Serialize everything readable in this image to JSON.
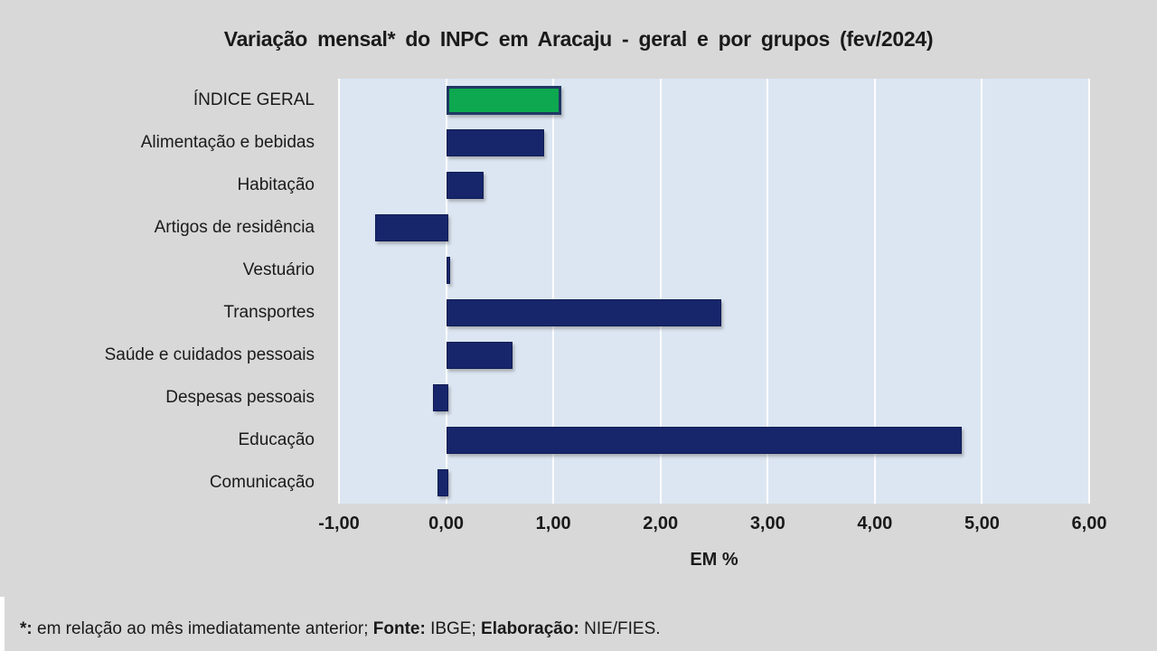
{
  "chart_data": {
    "type": "bar",
    "orientation": "horizontal",
    "title": "Variação mensal* do INPC em Aracaju - geral e por grupos (fev/2024)",
    "categories": [
      "ÍNDICE GERAL",
      "Alimentação e bebidas",
      "Habitação",
      "Artigos de residência",
      "Vestuário",
      "Transportes",
      "Saúde e cuidados pessoais",
      "Despesas pessoais",
      "Educação",
      "Comunicação"
    ],
    "values": [
      1.02,
      0.9,
      0.33,
      -0.66,
      0.02,
      2.55,
      0.6,
      -0.12,
      4.79,
      -0.08
    ],
    "xlabel": "EM %",
    "xlim": [
      -1,
      6
    ],
    "x_ticks": [
      "-1,00",
      "0,00",
      "1,00",
      "2,00",
      "3,00",
      "4,00",
      "5,00",
      "6,00"
    ],
    "grid": true,
    "legend": false,
    "highlight_index": 0,
    "colors": {
      "page_bg": "#d8d8d8",
      "plot_bg": "#dce6f2",
      "bar": "#17266b",
      "highlight_bar": "#0da84f",
      "highlight_border": "#1f3864",
      "gridline": "#ffffff",
      "text": "#1a1a1a"
    }
  },
  "footer": {
    "segments": [
      {
        "text": "*:",
        "bold": true
      },
      {
        "text": " em relação ao mês imediatamente anterior; ",
        "bold": false
      },
      {
        "text": "Fonte:",
        "bold": true
      },
      {
        "text": " IBGE; ",
        "bold": false
      },
      {
        "text": "Elaboração:",
        "bold": true
      },
      {
        "text": " NIE/FIES.",
        "bold": false
      }
    ]
  }
}
